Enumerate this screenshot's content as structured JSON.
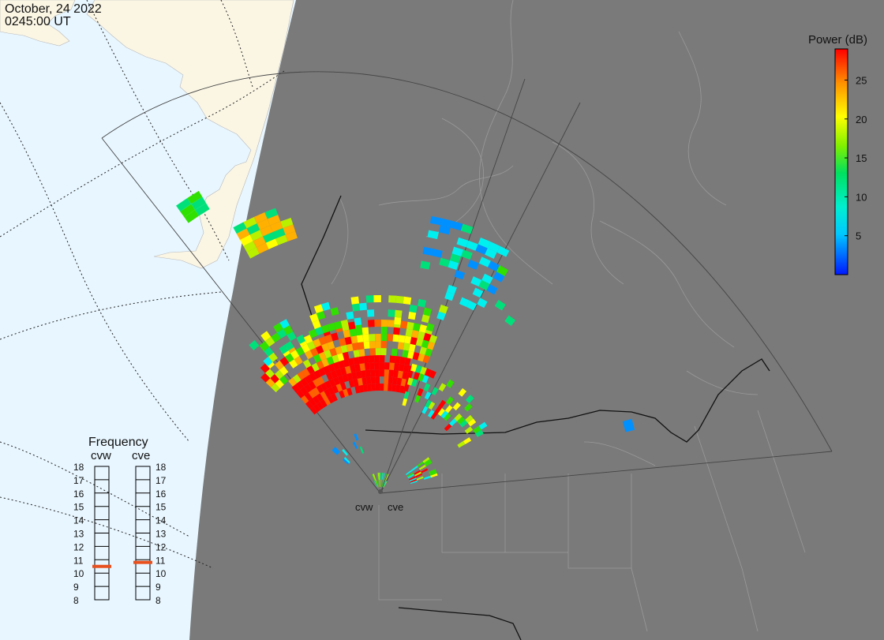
{
  "header": {
    "date": "October, 24 2022",
    "time": "0245:00 UT"
  },
  "colorbar": {
    "title": "Power (dB)",
    "ticks": [
      "25",
      "20",
      "15",
      "10",
      "5"
    ],
    "range": [
      0,
      29
    ],
    "colors": [
      "#0018ff",
      "#0090ff",
      "#00f0f0",
      "#00e07a",
      "#30e000",
      "#b8f000",
      "#ffff00",
      "#ffb000",
      "#ff6000",
      "#ff0000"
    ]
  },
  "frequency": {
    "title": "Frequency",
    "radars": [
      "cvw",
      "cve"
    ],
    "scale": [
      "18",
      "17",
      "16",
      "15",
      "14",
      "13",
      "12",
      "11",
      "10",
      "9",
      "8"
    ],
    "values_mhz": [
      10.5,
      10.8
    ],
    "marker_color": "#e8501e"
  },
  "map": {
    "site_labels": [
      "cvw",
      "cve"
    ],
    "background_color": "#e8f6ff",
    "night_color": "#7a7a7a",
    "land_color": "#fbf6e4"
  }
}
